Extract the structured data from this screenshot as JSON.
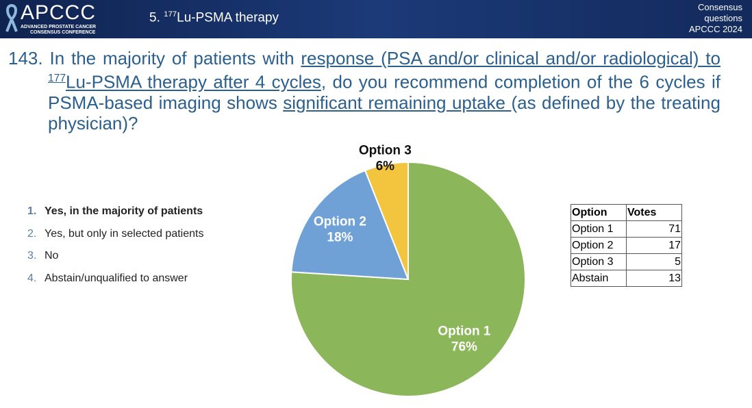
{
  "header": {
    "logo": "APCCC",
    "logo_line1": "ADVANCED PROSTATE CANCER",
    "logo_line2": "CONSENSUS CONFERENCE",
    "section_prefix": "5. ",
    "section_sup": "177",
    "section_rest": "Lu-PSMA therapy",
    "corner": [
      "Consensus",
      "questions",
      "APCCC 2024"
    ]
  },
  "question": {
    "number": "143.",
    "part1": "In the majority of patients with ",
    "part2": "response (PSA and/or clinical and/or radiological) to ",
    "part2_sup": "177",
    "part3": "Lu-PSMA therapy after 4 cycles",
    "part4": ", do you recommend completion of the 6 cycles if PSMA-based imaging shows ",
    "part5": "significant remaining uptake ",
    "part6": "(as defined by the treating physician)?"
  },
  "options": [
    {
      "number": "1.",
      "text": "Yes, in the majority of patients"
    },
    {
      "number": "2.",
      "text": "Yes, but only in selected patients"
    },
    {
      "number": "3.",
      "text": "No"
    },
    {
      "number": "4.",
      "text": "Abstain/unqualified to answer"
    }
  ],
  "chart_data": {
    "type": "pie",
    "categories": [
      "Option 1",
      "Option 2",
      "Option 3"
    ],
    "values": [
      76,
      18,
      6
    ],
    "value_labels": [
      "76%",
      "18%",
      "6%"
    ],
    "colors": [
      "#8bb65a",
      "#6fa0d6",
      "#f3c53f"
    ]
  },
  "table": {
    "header": [
      "Option",
      "Votes"
    ],
    "rows": [
      [
        "Option 1",
        71
      ],
      [
        "Option 2",
        17
      ],
      [
        "Option 3",
        5
      ],
      [
        "Abstain",
        13
      ]
    ]
  }
}
